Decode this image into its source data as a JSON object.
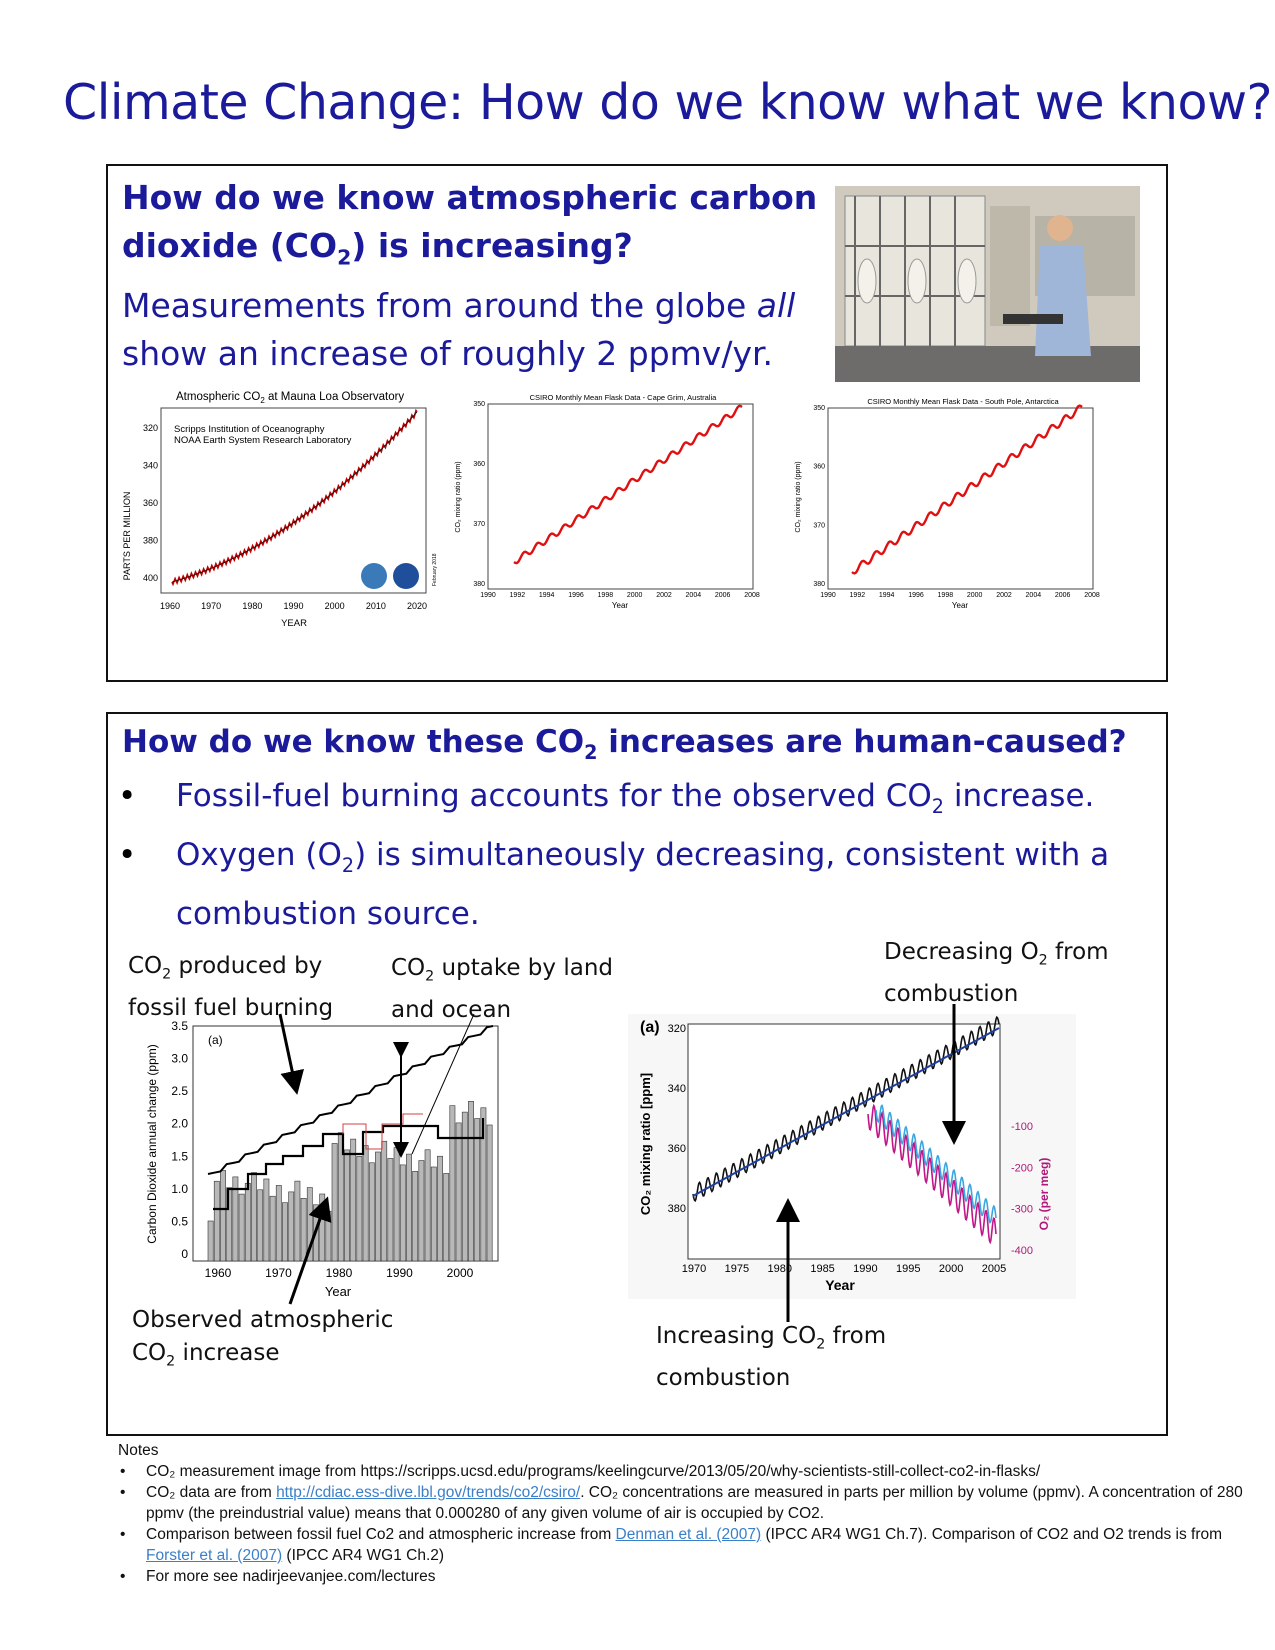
{
  "title": "Climate Change: How do we know what we know?",
  "section1": {
    "question_a": "How do we know atmospheric carbon dioxide (CO",
    "question_sub": "2",
    "question_b": ") is increasing?",
    "answer_a": "Measurements from around the globe ",
    "answer_em": "all",
    "answer_b": " show an increase of roughly 2 ppmv/yr.",
    "photo_icon": "scientist-photo-icon",
    "charts": {
      "mauna_loa": {
        "title_a": "Atmospheric CO",
        "title_sub": "2",
        "title_b": " at Mauna Loa Observatory",
        "source1": "Scripps Institution of Oceanography",
        "source2": "NOAA Earth System Research Laboratory",
        "ylabel": "PARTS PER MILLION",
        "xlabel": "YEAR",
        "xticks": [
          "1960",
          "1970",
          "1980",
          "1990",
          "2000",
          "2010",
          "2020"
        ],
        "yticks": [
          "320",
          "340",
          "360",
          "380",
          "400"
        ],
        "note": "February 2018"
      },
      "cape_grim": {
        "title": "CSIRO Monthly Mean Flask Data - Cape Grim, Australia",
        "ylabel": "CO₂ mixing ratio (ppm)",
        "xlabel": "Year",
        "xticks": [
          "1990",
          "1992",
          "1994",
          "1996",
          "1998",
          "2000",
          "2002",
          "2004",
          "2006",
          "2008"
        ],
        "yticks": [
          "350",
          "360",
          "370",
          "380"
        ]
      },
      "south_pole": {
        "title": "CSIRO Monthly Mean Flask Data - South Pole, Antarctica",
        "ylabel": "CO₂ mixing ratio (ppm)",
        "xlabel": "Year",
        "xticks": [
          "1990",
          "1992",
          "1994",
          "1996",
          "1998",
          "2000",
          "2002",
          "2004",
          "2006",
          "2008"
        ],
        "yticks": [
          "350",
          "360",
          "370",
          "380"
        ]
      }
    }
  },
  "section2": {
    "question_a": "How do we know these CO",
    "question_sub": "2",
    "question_b": " increases are human-caused?",
    "bullet1_a": "Fossil-fuel burning accounts for the observed CO",
    "bullet1_sub": "2",
    "bullet1_b": " increase.",
    "bullet2_a": "Oxygen (O",
    "bullet2_sub": "2",
    "bullet2_b": ") is simultaneously decreasing, consistent with a combustion source.",
    "annotations": {
      "fossil_a": "CO",
      "fossil_sub": "2",
      "fossil_b": " produced by",
      "fossil_c": "fossil fuel burning",
      "uptake_a": "CO",
      "uptake_sub": "2",
      "uptake_b": " uptake by land",
      "uptake_c": "and ocean",
      "observed_a": "Observed atmospheric",
      "observed_b": "CO",
      "observed_sub": "2",
      "observed_c": " increase",
      "o2_a": "Decreasing O",
      "o2_sub": "2",
      "o2_b": " from",
      "o2_c": "combustion",
      "co2inc_a": "Increasing CO",
      "co2inc_sub": "2",
      "co2inc_b": " from",
      "co2inc_c": "combustion"
    },
    "left_chart": {
      "panel": "(a)",
      "ylabel": "Carbon Dioxide annual change (ppm)",
      "xlabel": "Year",
      "xticks": [
        "1960",
        "1970",
        "1980",
        "1990",
        "2000"
      ],
      "yticks": [
        "0",
        "0.5",
        "1.0",
        "1.5",
        "2.0",
        "2.5",
        "3.0",
        "3.5"
      ]
    },
    "right_chart": {
      "panel": "(a)",
      "ylabel_left": "CO₂ mixing ratio [ppm]",
      "ylabel_right": "O₂ (per meg)",
      "xlabel": "Year",
      "xticks": [
        "1970",
        "1975",
        "1980",
        "1985",
        "1990",
        "1995",
        "2000",
        "2005"
      ],
      "yticks_left": [
        "320",
        "340",
        "360",
        "380"
      ],
      "yticks_right": [
        "-100",
        "-200",
        "-300",
        "-400"
      ]
    }
  },
  "notes": {
    "heading": "Notes",
    "n1": "CO₂ measurement image from https://scripps.ucsd.edu/programs/keelingcurve/2013/05/20/why-scientists-still-collect-co2-in-flasks/",
    "n2_a": "CO₂ data are from ",
    "n2_link": "http://cdiac.ess-dive.lbl.gov/trends/co2/csiro/",
    "n2_b": ". CO₂ concentrations are measured in parts per million by volume (ppmv). A concentration of 280 ppmv (the preindustrial value) means that 0.000280 of any given volume of air is occupied by CO2.",
    "n3_a": "Comparison between fossil fuel Co2 and atmospheric increase from ",
    "n3_link": "Denman et al. (2007)",
    "n3_b": " (IPCC AR4 WG1 Ch.7). Comparison of CO2 and O2 trends is from ",
    "n3_link2": "Forster et al. (2007)",
    "n3_c": " (IPCC AR4 WG1 Ch.2)",
    "n4": "For more see nadirjeevanjee.com/lectures"
  }
}
